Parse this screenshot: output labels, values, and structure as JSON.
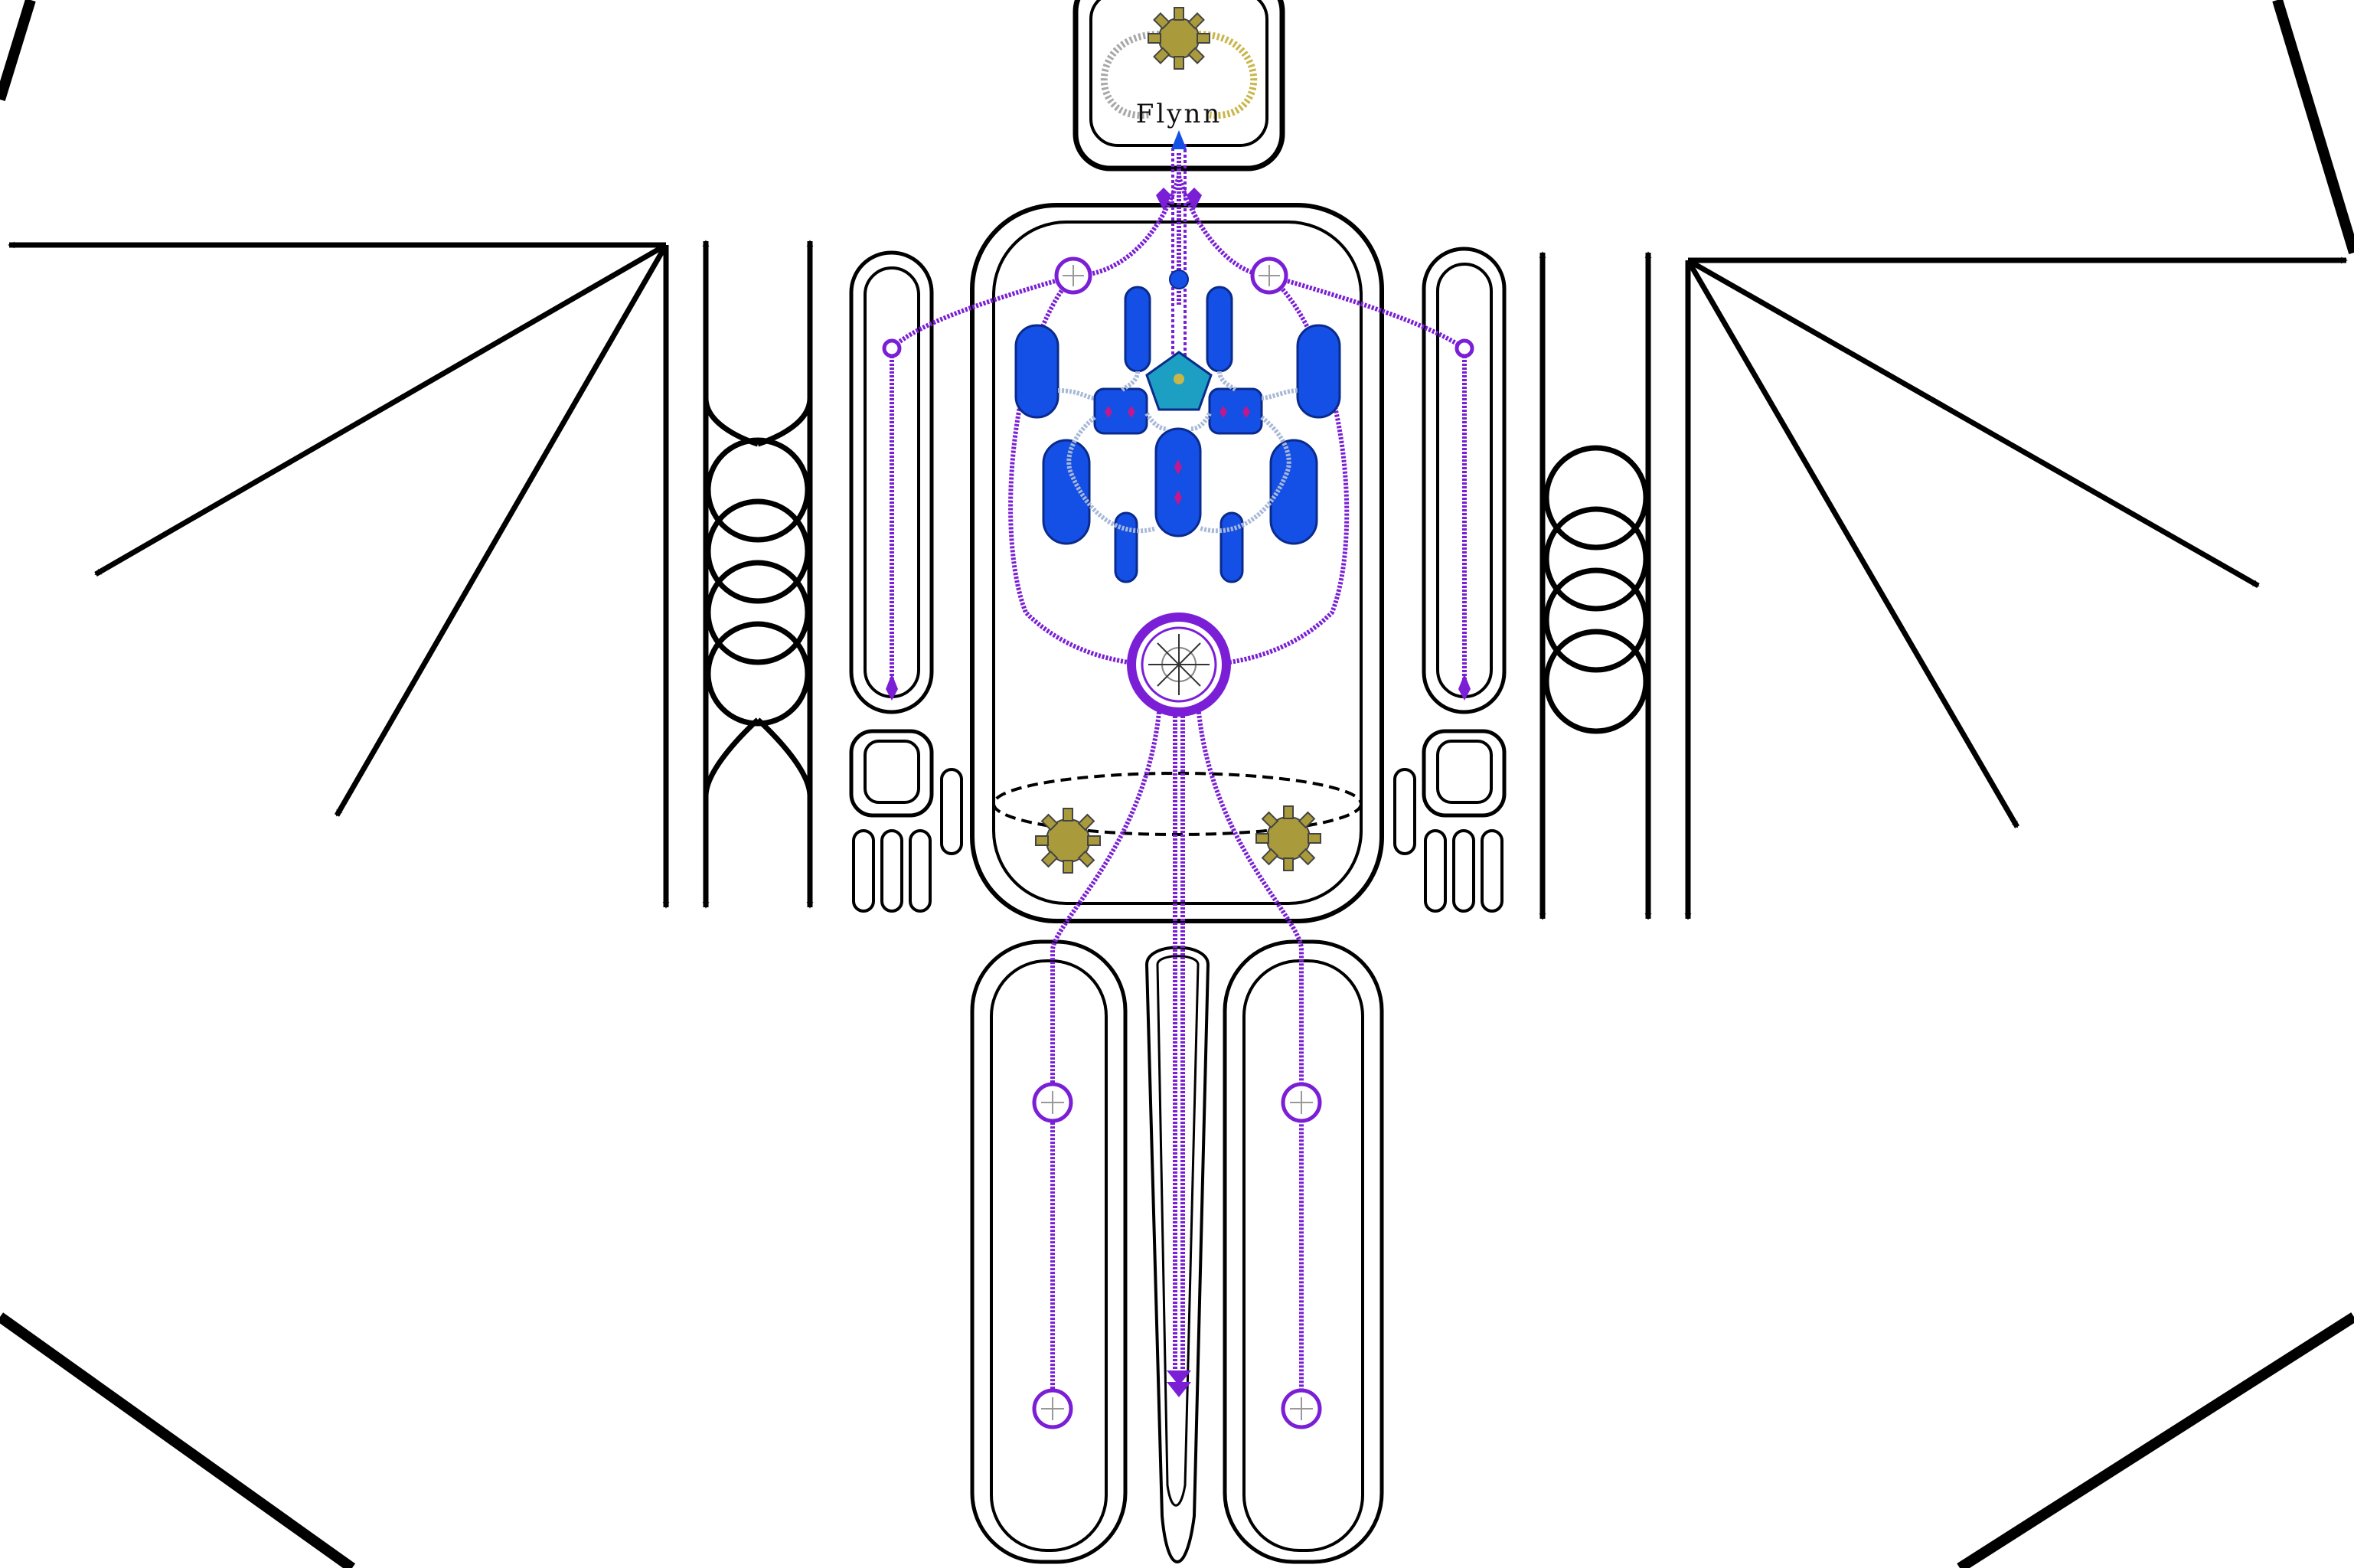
{
  "figure": {
    "name": "Flynn"
  },
  "colors": {
    "outline": "#000000",
    "purple": "#7a1fd6",
    "purple_light": "#b27cf5",
    "blue_fill": "#1450e6",
    "blue_stroke": "#0a2a8c",
    "teal": "#1d9fc4",
    "gold": "#a99a3c",
    "chain_grey": "#a8a8a8",
    "chain_gold": "#c9b64a",
    "dashed": "#000000"
  },
  "icons": {
    "head_gear": "gear-icon",
    "abdomen_gears": "gear-icon",
    "nodes": "wheel-icon",
    "core": "core-wheel-icon"
  }
}
